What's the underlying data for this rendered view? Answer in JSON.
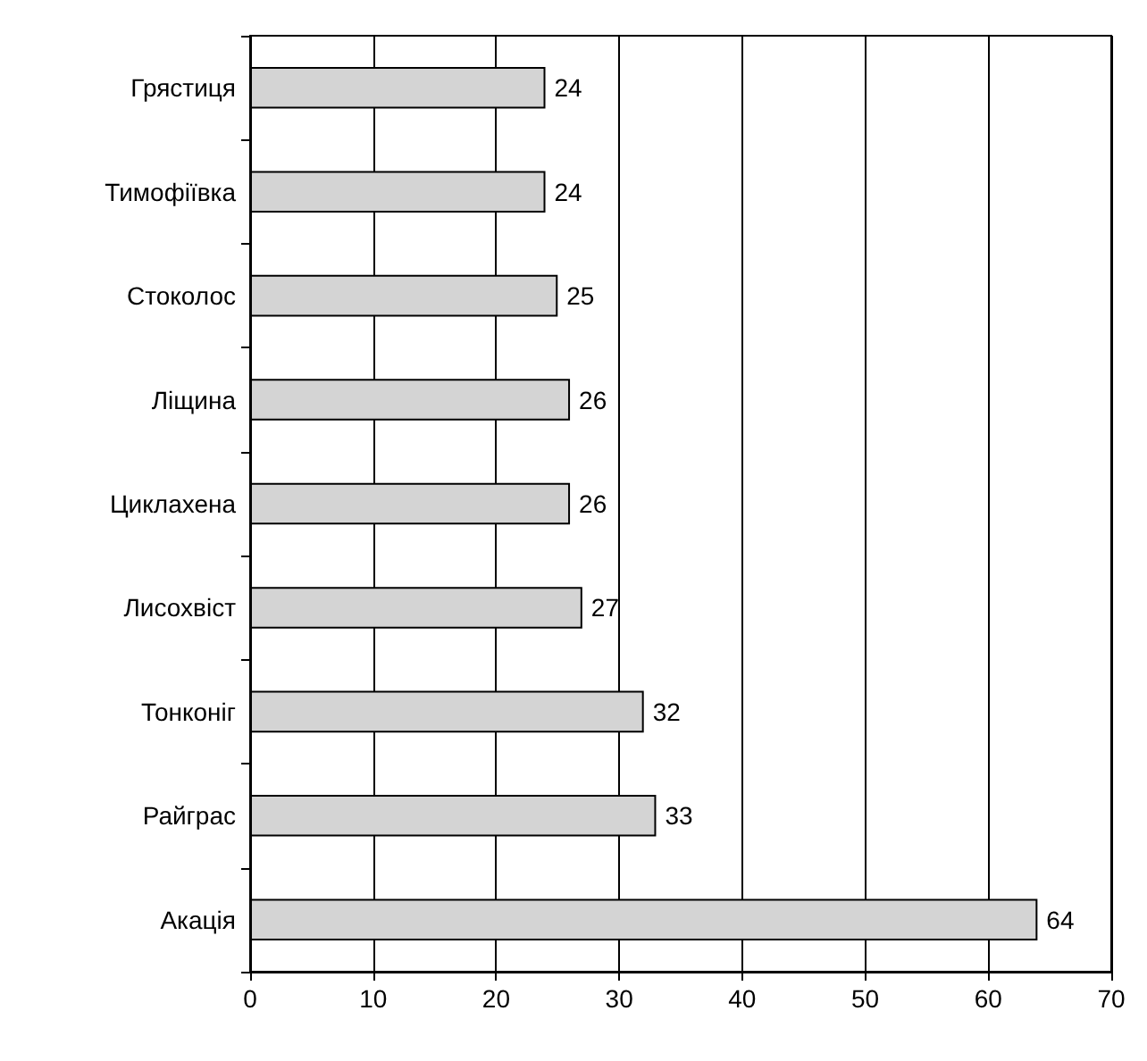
{
  "chart_data": {
    "type": "bar",
    "orientation": "horizontal",
    "categories": [
      "Грястиця",
      "Тимофіївка",
      "Стоколос",
      "Ліщина",
      "Циклахена",
      "Лисохвіст",
      "Тонконіг",
      "Райграс",
      "Акація"
    ],
    "values": [
      24,
      24,
      25,
      26,
      26,
      27,
      32,
      33,
      64
    ],
    "color": "#d4d4d4",
    "xlim": [
      0,
      70
    ],
    "xticks": [
      0,
      10,
      20,
      30,
      40,
      50,
      60,
      70
    ],
    "grid": "x",
    "data_labels": true
  }
}
